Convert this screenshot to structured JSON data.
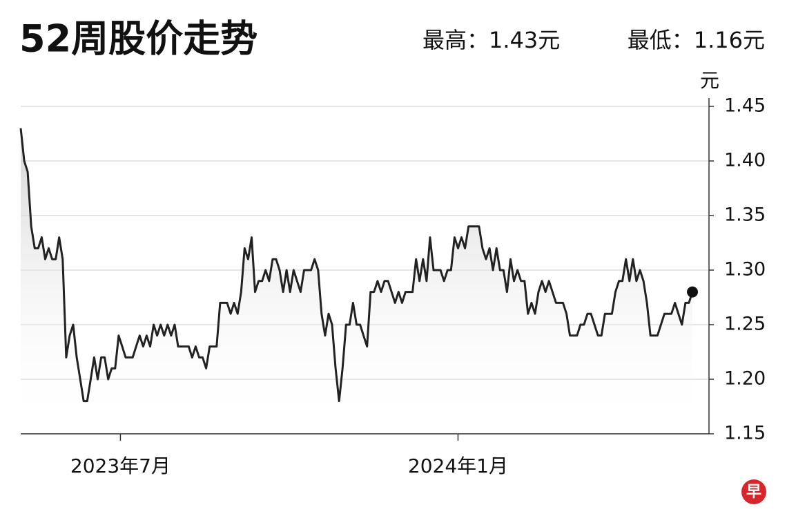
{
  "chart_data": {
    "type": "line",
    "title": "52周股价走势",
    "stats": [
      "最高：1.43元",
      "最低：1.16元"
    ],
    "y_unit": "元",
    "logo": "早",
    "series": [
      {
        "color": "#222222",
        "values": [
          1.43,
          1.4,
          1.39,
          1.34,
          1.32,
          1.32,
          1.33,
          1.31,
          1.32,
          1.31,
          1.31,
          1.33,
          1.31,
          1.22,
          1.24,
          1.25,
          1.22,
          1.2,
          1.18,
          1.18,
          1.2,
          1.22,
          1.2,
          1.22,
          1.22,
          1.2,
          1.21,
          1.21,
          1.24,
          1.23,
          1.22,
          1.22,
          1.22,
          1.23,
          1.24,
          1.23,
          1.24,
          1.23,
          1.25,
          1.24,
          1.25,
          1.24,
          1.25,
          1.24,
          1.25,
          1.23,
          1.23,
          1.23,
          1.23,
          1.22,
          1.23,
          1.22,
          1.22,
          1.21,
          1.23,
          1.23,
          1.23,
          1.27,
          1.27,
          1.27,
          1.26,
          1.27,
          1.26,
          1.28,
          1.32,
          1.31,
          1.33,
          1.28,
          1.29,
          1.29,
          1.3,
          1.29,
          1.31,
          1.31,
          1.3,
          1.28,
          1.3,
          1.28,
          1.3,
          1.29,
          1.28,
          1.3,
          1.3,
          1.3,
          1.31,
          1.3,
          1.26,
          1.24,
          1.26,
          1.25,
          1.21,
          1.18,
          1.21,
          1.25,
          1.25,
          1.27,
          1.25,
          1.25,
          1.24,
          1.23,
          1.28,
          1.28,
          1.29,
          1.28,
          1.29,
          1.29,
          1.28,
          1.27,
          1.28,
          1.27,
          1.28,
          1.28,
          1.28,
          1.31,
          1.29,
          1.31,
          1.29,
          1.33,
          1.3,
          1.3,
          1.3,
          1.29,
          1.3,
          1.3,
          1.33,
          1.32,
          1.33,
          1.32,
          1.34,
          1.34,
          1.34,
          1.34,
          1.32,
          1.31,
          1.32,
          1.3,
          1.32,
          1.3,
          1.3,
          1.28,
          1.31,
          1.29,
          1.3,
          1.29,
          1.29,
          1.26,
          1.27,
          1.26,
          1.28,
          1.29,
          1.28,
          1.29,
          1.28,
          1.27,
          1.27,
          1.27,
          1.26,
          1.24,
          1.24,
          1.24,
          1.25,
          1.25,
          1.26,
          1.26,
          1.25,
          1.24,
          1.24,
          1.26,
          1.26,
          1.26,
          1.28,
          1.29,
          1.29,
          1.31,
          1.29,
          1.31,
          1.29,
          1.3,
          1.29,
          1.27,
          1.24,
          1.24,
          1.24,
          1.25,
          1.26,
          1.26,
          1.26,
          1.27,
          1.26,
          1.25,
          1.27,
          1.27,
          1.28
        ]
      }
    ],
    "xlim": [
      0,
      192
    ],
    "xticks": [
      {
        "value": 28.5,
        "label": "2023年7月"
      },
      {
        "value": 125,
        "label": "2024年1月"
      }
    ],
    "ylim": [
      1.15,
      1.45
    ],
    "yticks": [
      1.45,
      {
        "value": 1.4,
        "label": "1.40"
      },
      1.35,
      {
        "value": 1.3,
        "label": "1.30"
      },
      1.25,
      {
        "value": 1.2,
        "label": "1.20"
      },
      1.15
    ],
    "grid": true
  }
}
